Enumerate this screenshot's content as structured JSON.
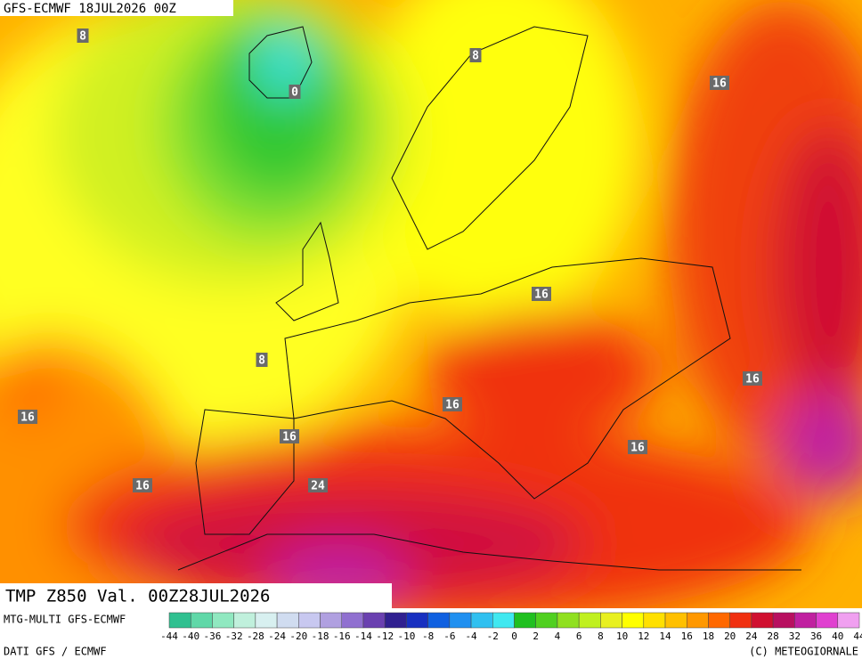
{
  "header": {
    "title": "GFS-ECMWF 18JUL2026 00Z"
  },
  "map": {
    "label": "TMP Z850 Val. 00Z28JUL2026",
    "contour_labels": [
      8,
      8,
      0,
      16,
      16,
      8,
      16,
      16,
      16,
      16,
      16,
      16,
      24
    ]
  },
  "footer": {
    "model": "MTG-MULTI GFS-ECMWF",
    "source": "DATI GFS / ECMWF",
    "credit": "(C) METEOGIORNALE"
  },
  "colorbar": {
    "ticks": [
      -44,
      -40,
      -36,
      -32,
      -28,
      -24,
      -20,
      -18,
      -16,
      -14,
      -12,
      -10,
      -8,
      -6,
      -4,
      -2,
      0,
      2,
      4,
      6,
      8,
      10,
      12,
      14,
      16,
      18,
      20,
      24,
      28,
      32,
      36,
      40,
      44
    ],
    "colors": [
      "#30c090",
      "#60d8a8",
      "#90e8c0",
      "#c0f0dc",
      "#d8f0f0",
      "#d0dcf0",
      "#c8c8f0",
      "#b0a0e0",
      "#9070d0",
      "#6a40b0",
      "#302090",
      "#1830c0",
      "#1060e0",
      "#2090f0",
      "#30c0f0",
      "#40e8f0",
      "#20c020",
      "#50d020",
      "#90e020",
      "#c0f020",
      "#e8f020",
      "#ffff00",
      "#ffe000",
      "#ffc000",
      "#ff9800",
      "#ff6800",
      "#f03010",
      "#d01030",
      "#b81060",
      "#c020a0",
      "#e040d0",
      "#f0a0f0"
    ]
  }
}
